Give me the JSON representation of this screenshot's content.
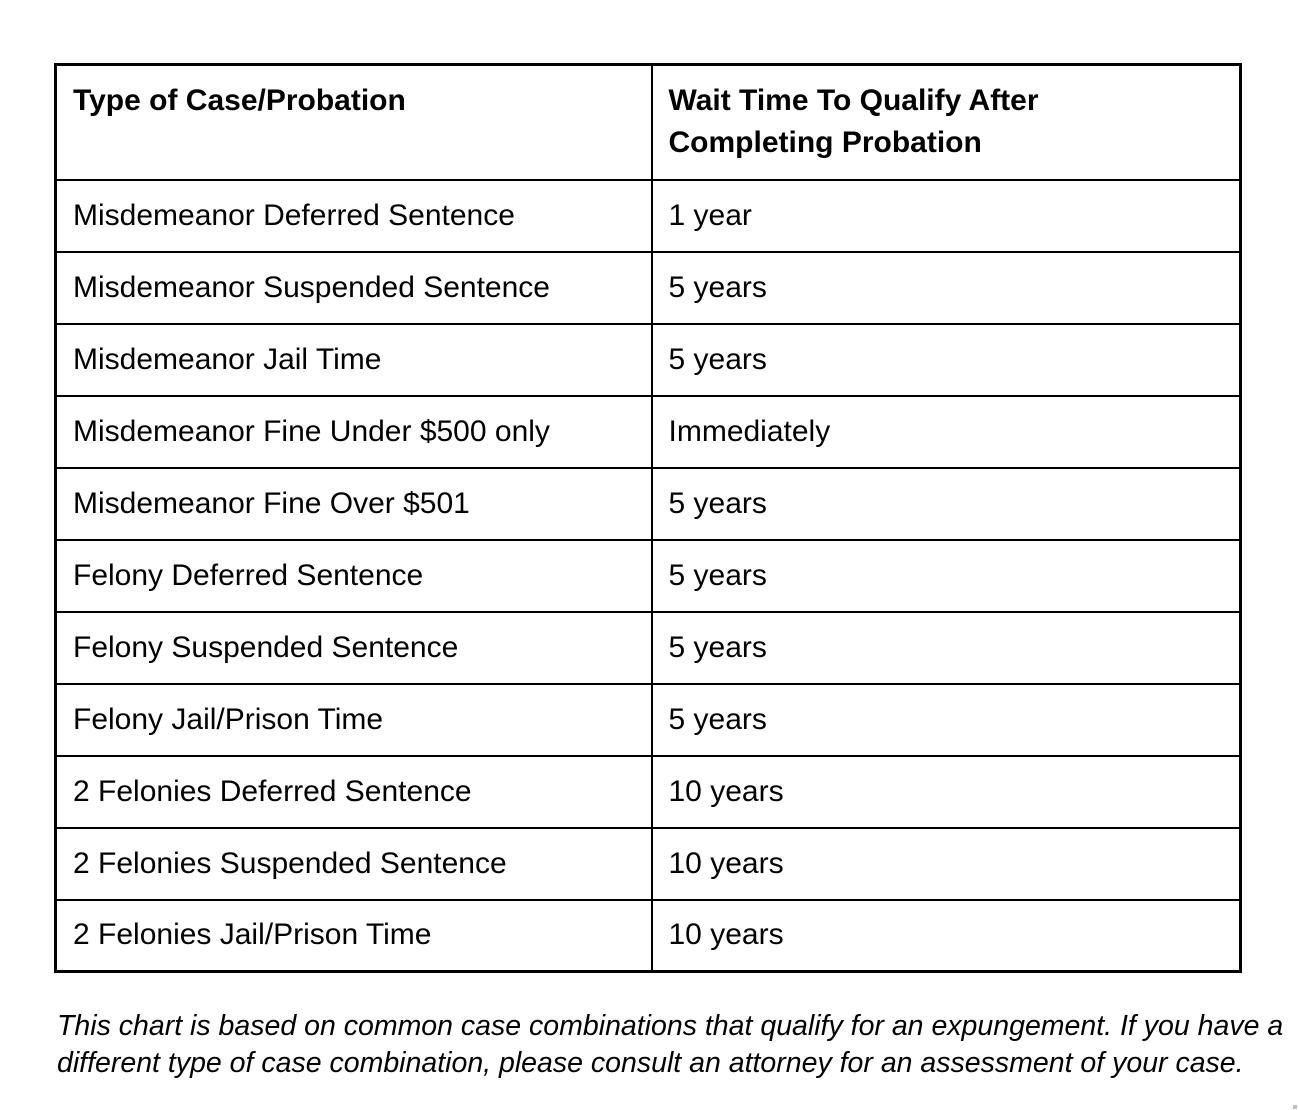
{
  "table": {
    "header": {
      "col1": "Type of Case/Probation",
      "col2_line1": "Wait Time To Qualify After",
      "col2_line2": "Completing Probation"
    },
    "rows": [
      {
        "type": "Misdemeanor Deferred Sentence",
        "wait": "1 year"
      },
      {
        "type": "Misdemeanor Suspended Sentence",
        "wait": "5 years"
      },
      {
        "type": "Misdemeanor Jail Time",
        "wait": "5 years"
      },
      {
        "type": "Misdemeanor Fine Under $500 only",
        "wait": "Immediately"
      },
      {
        "type": "Misdemeanor Fine Over $501",
        "wait": "5 years"
      },
      {
        "type": "Felony Deferred Sentence",
        "wait": "5 years"
      },
      {
        "type": "Felony Suspended Sentence",
        "wait": "5 years"
      },
      {
        "type": "Felony Jail/Prison Time",
        "wait": "5 years"
      },
      {
        "type": "2 Felonies Deferred Sentence",
        "wait": "10 years"
      },
      {
        "type": "2 Felonies Suspended Sentence",
        "wait": "10 years"
      },
      {
        "type": "2 Felonies Jail/Prison Time",
        "wait": "10 years"
      }
    ]
  },
  "footnote": {
    "line1": "This chart is based on common case combinations that qualify for an expungement. If you have a",
    "line2": "different type of case combination, please consult an attorney for an assessment of your case."
  },
  "colors": {
    "border": "#000000",
    "text": "#000000",
    "background": "#ffffff"
  }
}
